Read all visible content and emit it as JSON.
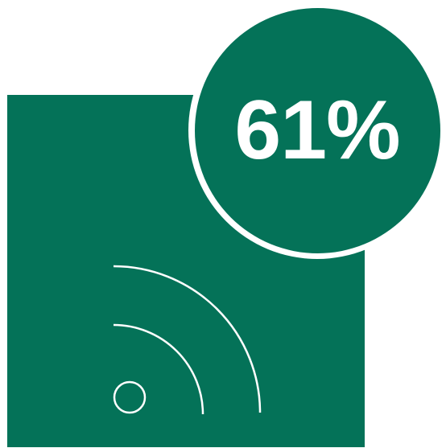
{
  "colors": {
    "brand": "#047258",
    "foreground": "#ffffff"
  },
  "badge": {
    "value_label": "61%"
  },
  "icon": {
    "name": "wifi-signal-icon"
  }
}
